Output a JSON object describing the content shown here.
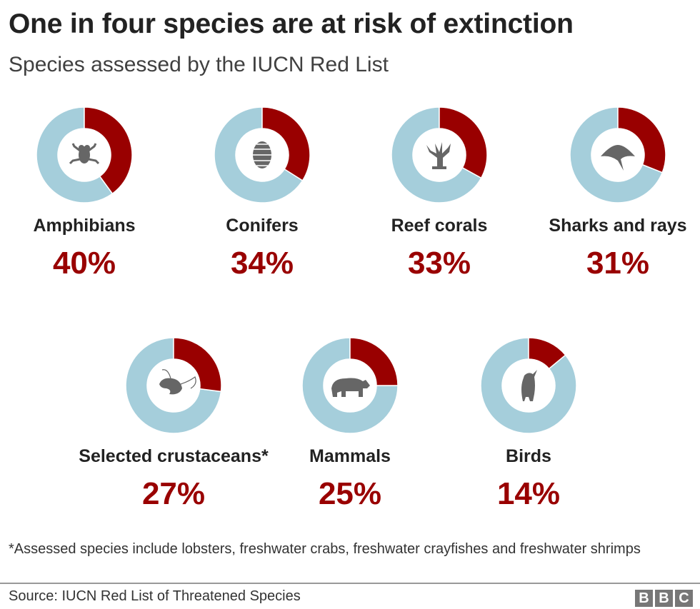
{
  "title": "One in four species are at risk of extinction",
  "subtitle": "Species assessed by the IUCN Red List",
  "chart_data": {
    "type": "pie",
    "variant": "donut",
    "colors": {
      "at_risk": "#990000",
      "rest": "#a5cedb",
      "icon": "#666666"
    },
    "categories": [
      "Amphibians",
      "Conifers",
      "Reef corals",
      "Sharks and rays",
      "Selected crustaceans*",
      "Mammals",
      "Birds"
    ],
    "values": [
      40,
      34,
      33,
      31,
      27,
      25,
      14
    ],
    "value_labels": [
      "40%",
      "34%",
      "33%",
      "31%",
      "27%",
      "25%",
      "14%"
    ],
    "icons": [
      "frog-icon",
      "pine-cone-icon",
      "coral-icon",
      "manta-ray-icon",
      "shrimp-icon",
      "bear-icon",
      "bird-icon"
    ]
  },
  "footnote": "*Assessed species include lobsters, freshwater crabs, freshwater crayfishes and freshwater shrimps",
  "source": "Source: IUCN Red List of Threatened Species",
  "logo": [
    "B",
    "B",
    "C"
  ]
}
